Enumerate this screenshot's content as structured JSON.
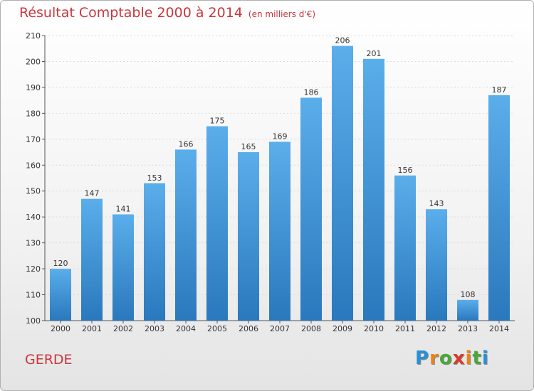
{
  "header": {
    "title": "Résultat Comptable 2000 à 2014",
    "subtitle": "(en milliers d'€)"
  },
  "footer": {
    "location": "GERDE",
    "logo_letters": [
      "P",
      "r",
      "o",
      "x",
      "i",
      "t",
      "i"
    ],
    "logo_colors": [
      "#2a8fd6",
      "#e8831a",
      "#4aa83a",
      "#d93a2b",
      "#e8831a",
      "#4aa83a",
      "#2a8fd6"
    ]
  },
  "colors": {
    "bar_light": "#5aaeea",
    "bar_dark": "#2a78bd",
    "grid": "#dcdcdc",
    "axis": "#555555"
  },
  "chart_data": {
    "type": "bar",
    "title": "Résultat Comptable 2000 à 2014",
    "xlabel": "",
    "ylabel": "",
    "categories": [
      "2000",
      "2001",
      "2002",
      "2003",
      "2004",
      "2005",
      "2006",
      "2007",
      "2008",
      "2009",
      "2010",
      "2011",
      "2012",
      "2013",
      "2014"
    ],
    "values": [
      120,
      147,
      141,
      153,
      166,
      175,
      165,
      169,
      186,
      206,
      201,
      156,
      143,
      108,
      187
    ],
    "ylim": [
      100,
      210
    ],
    "yticks": [
      100,
      110,
      120,
      130,
      140,
      150,
      160,
      170,
      180,
      190,
      200,
      210
    ],
    "grid": true,
    "legend": "none"
  }
}
